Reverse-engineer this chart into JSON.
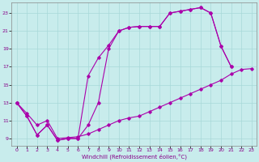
{
  "bg_color": "#c8ecec",
  "grid_color": "#a8d8d8",
  "line_color": "#aa00aa",
  "xlabel": "Windchill (Refroidissement éolien,°C)",
  "xlim": [
    -0.5,
    23.5
  ],
  "ylim": [
    8.2,
    24.2
  ],
  "xticks": [
    0,
    1,
    2,
    3,
    4,
    5,
    6,
    7,
    8,
    9,
    10,
    11,
    12,
    13,
    14,
    15,
    16,
    17,
    18,
    19,
    20,
    21,
    22,
    23
  ],
  "yticks": [
    9,
    11,
    13,
    15,
    17,
    19,
    21,
    23
  ],
  "line1_x": [
    0,
    1,
    2,
    3,
    4,
    5,
    6,
    7,
    8,
    9,
    10,
    11,
    12,
    13,
    14,
    15,
    16,
    17,
    18,
    19,
    20,
    21
  ],
  "line1_y": [
    13.0,
    11.5,
    9.4,
    10.5,
    8.8,
    9.0,
    9.0,
    10.5,
    13.0,
    19.0,
    21.0,
    21.4,
    21.5,
    21.5,
    21.5,
    23.0,
    23.2,
    23.4,
    23.6,
    23.0,
    19.3,
    17.0
  ],
  "line2_x": [
    0,
    1,
    2,
    3,
    4,
    5,
    6,
    7,
    8,
    9,
    10,
    11,
    12,
    13,
    14,
    15,
    16,
    17,
    18,
    19,
    20,
    21
  ],
  "line2_y": [
    13.0,
    11.5,
    9.4,
    10.5,
    8.8,
    9.0,
    9.0,
    16.0,
    18.0,
    19.4,
    21.0,
    21.4,
    21.5,
    21.5,
    21.5,
    23.0,
    23.2,
    23.4,
    23.6,
    23.0,
    19.3,
    17.0
  ],
  "line3_x": [
    0,
    1,
    2,
    3,
    4,
    5,
    6,
    7,
    8,
    9,
    10,
    11,
    12,
    13,
    14,
    15,
    16,
    17,
    18,
    19,
    20,
    21,
    22,
    23
  ],
  "line3_y": [
    13.0,
    11.8,
    10.5,
    11.0,
    9.0,
    9.1,
    9.2,
    9.5,
    10.0,
    10.5,
    11.0,
    11.3,
    11.5,
    12.0,
    12.5,
    13.0,
    13.5,
    14.0,
    14.5,
    15.0,
    15.5,
    16.2,
    16.7,
    16.8
  ]
}
